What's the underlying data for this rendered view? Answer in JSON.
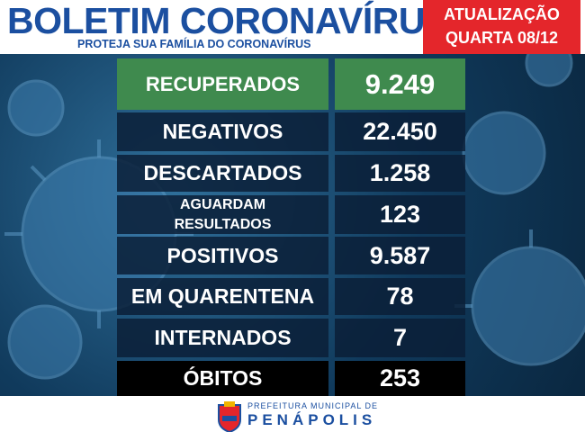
{
  "header": {
    "title": "BOLETIM CORONAVÍRUS",
    "subtitle": "PROTEJA SUA FAMÍLIA DO CORONAVÍRUS",
    "update_line1": "ATUALIZAÇÃO",
    "update_line2": "QUARTA 08/12"
  },
  "table": {
    "rows": [
      [
        "RECUPERADOS",
        "9.249"
      ],
      [
        "NEGATIVOS",
        "22.450"
      ],
      [
        "DESCARTADOS",
        "1.258"
      ],
      [
        "AGUARDAM RESULTADOS",
        "123"
      ],
      [
        "POSITIVOS",
        "9.587"
      ],
      [
        "EM QUARENTENA",
        "78"
      ],
      [
        "INTERNADOS",
        "7"
      ],
      [
        "ÓBITOS",
        "253"
      ]
    ]
  },
  "footer": {
    "line1": "PREFEITURA MUNICIPAL DE",
    "line2": "PENÁPOLIS"
  }
}
